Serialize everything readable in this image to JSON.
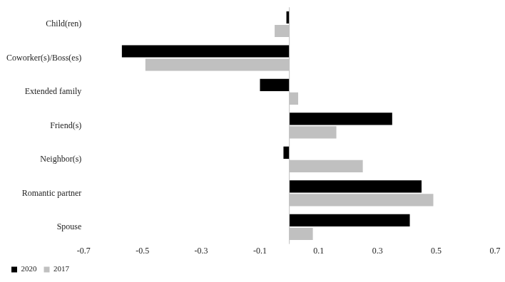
{
  "chart_data": {
    "type": "bar",
    "orientation": "horizontal",
    "categories": [
      "Child(ren)",
      "Coworker(s)/Boss(es)",
      "Extended family",
      "Friend(s)",
      "Neighbor(s)",
      "Romantic partner",
      "Spouse"
    ],
    "series": [
      {
        "name": "2020",
        "color": "#000000",
        "values": [
          -0.01,
          -0.57,
          -0.1,
          0.35,
          -0.02,
          0.45,
          0.41
        ]
      },
      {
        "name": "2017",
        "color": "#c0c0c0",
        "values": [
          -0.05,
          -0.49,
          0.03,
          0.16,
          0.25,
          0.49,
          0.08
        ]
      }
    ],
    "xlim": [
      -0.7,
      0.7
    ],
    "xticks": [
      -0.7,
      -0.5,
      -0.3,
      -0.1,
      0.1,
      0.3,
      0.5,
      0.7
    ],
    "grid": false,
    "legend": "bottom"
  }
}
